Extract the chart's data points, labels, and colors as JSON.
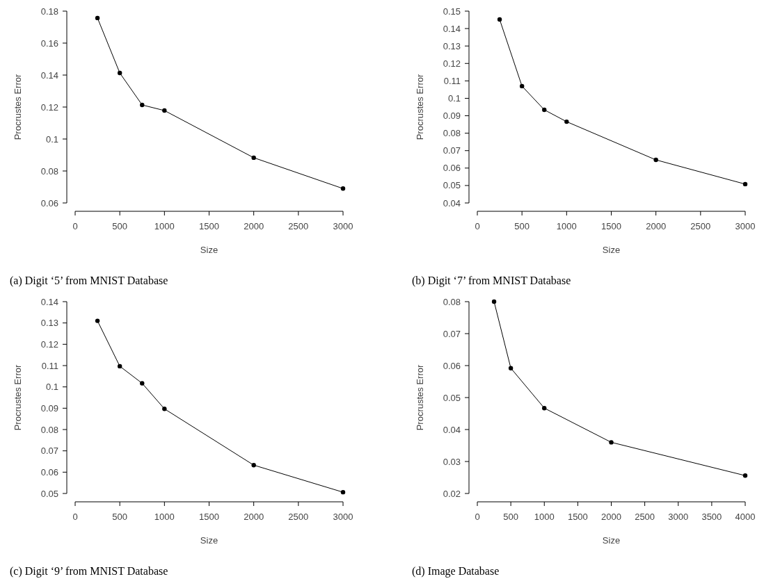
{
  "chart_data": [
    {
      "type": "line",
      "title": "(a) Digit ‘5’ from MNIST Database",
      "xlabel": "Size",
      "ylabel": "Procrustes Error",
      "x": [
        250,
        500,
        750,
        1000,
        2000,
        3000
      ],
      "series": [
        {
          "color": "#000000",
          "values": [
            0.1757,
            0.1413,
            0.1213,
            0.1178,
            0.0883,
            0.069
          ]
        }
      ],
      "xlim": [
        0,
        3000
      ],
      "xticks": [
        0,
        500,
        1000,
        1500,
        2000,
        2500,
        3000
      ],
      "ylim": [
        0.06,
        0.18
      ],
      "yticks": [
        0.06,
        0.08,
        0.1,
        0.12,
        0.14,
        0.16,
        0.18
      ],
      "marker": "circle"
    },
    {
      "type": "line",
      "title": "(b) Digit ‘7’ from MNIST Database",
      "xlabel": "Size",
      "ylabel": "Procrustes Error",
      "x": [
        250,
        500,
        750,
        1000,
        2000,
        3000
      ],
      "series": [
        {
          "color": "#000000",
          "values": [
            0.1452,
            0.107,
            0.0934,
            0.0866,
            0.0647,
            0.0508
          ]
        }
      ],
      "xlim": [
        0,
        3000
      ],
      "xticks": [
        0,
        500,
        1000,
        1500,
        2000,
        2500,
        3000
      ],
      "ylim": [
        0.04,
        0.15
      ],
      "yticks": [
        0.04,
        0.05,
        0.06,
        0.07,
        0.08,
        0.09,
        0.1,
        0.11,
        0.12,
        0.13,
        0.14,
        0.15
      ],
      "marker": "circle"
    },
    {
      "type": "line",
      "title": "(c) Digit ‘9’ from MNIST Database",
      "xlabel": "Size",
      "ylabel": "Procrustes Error",
      "x": [
        250,
        500,
        750,
        1000,
        2000,
        3000
      ],
      "series": [
        {
          "color": "#000000",
          "values": [
            0.131,
            0.1097,
            0.1017,
            0.0897,
            0.0633,
            0.0506
          ]
        }
      ],
      "xlim": [
        0,
        3000
      ],
      "xticks": [
        0,
        500,
        1000,
        1500,
        2000,
        2500,
        3000
      ],
      "ylim": [
        0.05,
        0.14
      ],
      "yticks": [
        0.05,
        0.06,
        0.07,
        0.08,
        0.09,
        0.1,
        0.11,
        0.12,
        0.13,
        0.14
      ],
      "marker": "circle"
    },
    {
      "type": "line",
      "title": "(d) Image Database",
      "xlabel": "Size",
      "ylabel": "Procrustes Error",
      "x": [
        250,
        500,
        1000,
        2000,
        4000
      ],
      "series": [
        {
          "color": "#000000",
          "values": [
            0.08,
            0.0592,
            0.0467,
            0.036,
            0.0256
          ]
        }
      ],
      "xlim": [
        0,
        4000
      ],
      "xticks": [
        0,
        500,
        1000,
        1500,
        2000,
        2500,
        3000,
        3500,
        4000
      ],
      "ylim": [
        0.02,
        0.08
      ],
      "yticks": [
        0.02,
        0.03,
        0.04,
        0.05,
        0.06,
        0.07,
        0.08
      ],
      "marker": "circle"
    }
  ]
}
